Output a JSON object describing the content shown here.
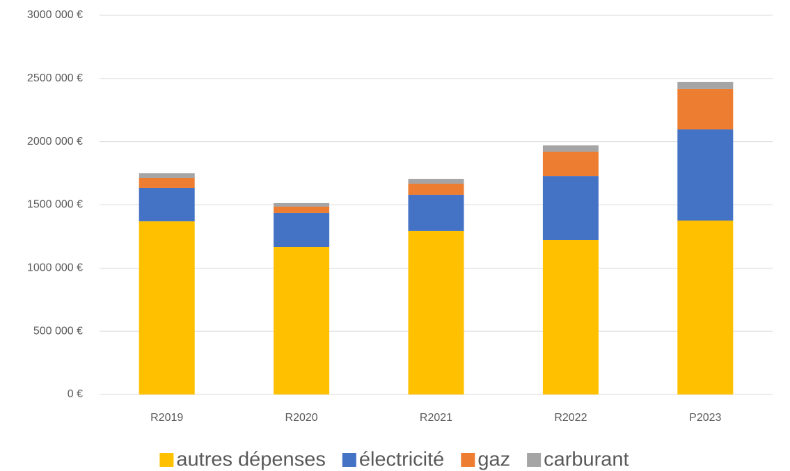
{
  "chart_data": {
    "type": "stacked_bar",
    "categories": [
      "R2019",
      "R2020",
      "R2021",
      "R2022",
      "P2023"
    ],
    "series": [
      {
        "name": "autres dépenses",
        "color": "#FFC000",
        "values": [
          1370000,
          1167000,
          1294000,
          1222000,
          1376000
        ]
      },
      {
        "name": "électricité",
        "color": "#4472C4",
        "values": [
          265000,
          270000,
          286000,
          506000,
          721000
        ]
      },
      {
        "name": "gaz",
        "color": "#ED7D31",
        "values": [
          77000,
          49000,
          88000,
          193000,
          320000
        ]
      },
      {
        "name": "carburant",
        "color": "#A5A5A5",
        "values": [
          38000,
          28000,
          38000,
          50000,
          55000
        ]
      }
    ],
    "ylim": [
      0,
      3000000
    ],
    "yticks": [
      {
        "value": 0,
        "label": "0 €"
      },
      {
        "value": 500000,
        "label": "500 000 €"
      },
      {
        "value": 1000000,
        "label": "1000 000 €"
      },
      {
        "value": 1500000,
        "label": "1500 000 €"
      },
      {
        "value": 2000000,
        "label": "2000 000 €"
      },
      {
        "value": 2500000,
        "label": "2500 000 €"
      },
      {
        "value": 3000000,
        "label": "3000 000 €"
      }
    ],
    "grid": true,
    "legend": "bottom"
  }
}
